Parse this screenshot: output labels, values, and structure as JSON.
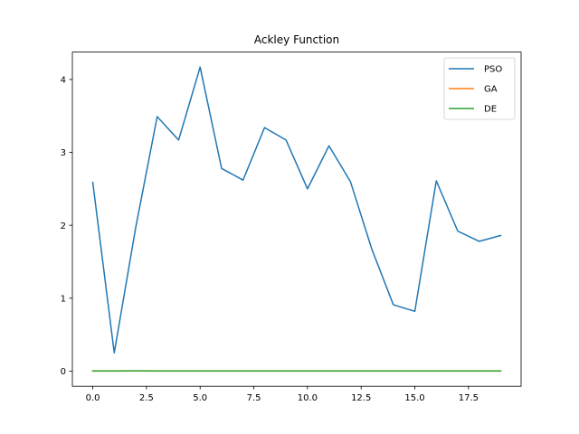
{
  "chart_data": {
    "type": "line",
    "title": "Ackley Function",
    "xlabel": "",
    "ylabel": "",
    "xlim": [
      -0.95,
      19.95
    ],
    "ylim": [
      -0.208,
      4.376
    ],
    "xticks": [
      0,
      2.5,
      5,
      7.5,
      10,
      12.5,
      15,
      17.5
    ],
    "xtick_labels": [
      "0.0",
      "2.5",
      "5.0",
      "7.5",
      "10.0",
      "12.5",
      "15.0",
      "17.5"
    ],
    "yticks": [
      0,
      1,
      2,
      3,
      4
    ],
    "ytick_labels": [
      "0",
      "1",
      "2",
      "3",
      "4"
    ],
    "grid": false,
    "legend_position": "top-right",
    "x": [
      0,
      1,
      2,
      3,
      4,
      5,
      6,
      7,
      8,
      9,
      10,
      11,
      12,
      13,
      14,
      15,
      16,
      17,
      18,
      19
    ],
    "series": [
      {
        "name": "PSO",
        "color": "#1f77b4",
        "values": [
          2.59,
          0.25,
          1.97,
          3.49,
          3.17,
          4.17,
          2.78,
          2.62,
          3.34,
          3.17,
          2.5,
          3.09,
          2.6,
          1.67,
          0.91,
          0.82,
          2.61,
          1.92,
          1.78,
          1.86
        ]
      },
      {
        "name": "GA",
        "color": "#ff7f0e",
        "values": [
          0.001,
          0.001,
          0.003,
          0.001,
          0.001,
          0.001,
          0.001,
          0.001,
          0.001,
          0.001,
          0.001,
          0.001,
          0.001,
          0.001,
          0.001,
          0.001,
          0.001,
          0.001,
          0.001,
          0.001
        ]
      },
      {
        "name": "DE",
        "color": "#2ca02c",
        "values": [
          0.002,
          0.002,
          0.004,
          0.002,
          0.002,
          0.002,
          0.002,
          0.002,
          0.002,
          0.002,
          0.002,
          0.002,
          0.002,
          0.002,
          0.002,
          0.002,
          0.002,
          0.002,
          0.002,
          0.002
        ]
      }
    ]
  }
}
